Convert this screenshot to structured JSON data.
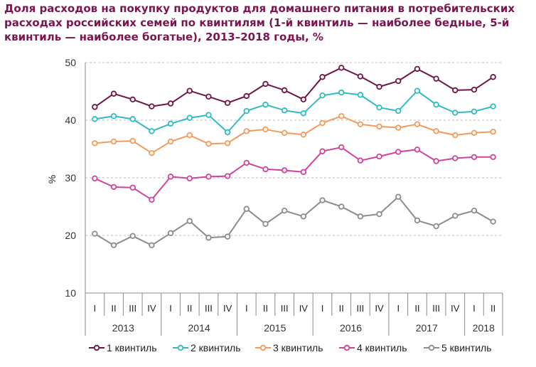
{
  "chart_data": {
    "type": "line",
    "title": "Доля расходов на покупку продуктов для домашнего питания в потребительских расходах российских семей по квинтилям (1-й квинтиль — наиболее бедные, 5-й квинтиль — наиболее богатые), 2013–2018 годы, %",
    "ylabel": "%",
    "xlabel": "",
    "ylim": [
      10,
      50
    ],
    "yticks": [
      "10",
      "20",
      "30",
      "40",
      "50"
    ],
    "grid": true,
    "legend_position": "bottom",
    "quarters": [
      "I",
      "II",
      "III",
      "IV",
      "I",
      "II",
      "III",
      "IV",
      "I",
      "II",
      "III",
      "IV",
      "I",
      "II",
      "III",
      "IV",
      "I",
      "II",
      "III",
      "IV",
      "I",
      "II"
    ],
    "years": [
      {
        "label": "2013",
        "quarters": 4
      },
      {
        "label": "2014",
        "quarters": 4
      },
      {
        "label": "2015",
        "quarters": 4
      },
      {
        "label": "2016",
        "quarters": 4
      },
      {
        "label": "2017",
        "quarters": 4
      },
      {
        "label": "2018",
        "quarters": 2
      }
    ],
    "series": [
      {
        "name": "1 квинтиль",
        "color": "#6e1548",
        "values": [
          42.3,
          44.6,
          43.6,
          42.4,
          42.9,
          45.1,
          44.1,
          43.0,
          44.2,
          46.3,
          45.2,
          43.6,
          47.5,
          49.1,
          47.6,
          45.8,
          46.8,
          48.9,
          47.2,
          45.2,
          45.3,
          47.5
        ]
      },
      {
        "name": "2 квинтиль",
        "color": "#2fbcc1",
        "values": [
          40.2,
          40.7,
          40.2,
          38.1,
          39.4,
          40.4,
          40.9,
          37.9,
          41.6,
          42.7,
          41.7,
          41.2,
          44.3,
          44.8,
          44.4,
          42.2,
          41.6,
          45.1,
          42.7,
          41.3,
          41.5,
          42.4
        ]
      },
      {
        "name": "3 квинтиль",
        "color": "#f49a5a",
        "values": [
          36.0,
          36.3,
          36.4,
          34.3,
          36.3,
          37.4,
          35.9,
          36.0,
          38.1,
          38.4,
          37.8,
          37.5,
          39.5,
          40.7,
          39.3,
          38.9,
          38.7,
          39.3,
          38.1,
          37.4,
          37.8,
          38.0
        ]
      },
      {
        "name": "4 квинтиль",
        "color": "#d1439a",
        "values": [
          29.9,
          28.4,
          28.3,
          26.2,
          30.2,
          29.9,
          30.2,
          30.3,
          32.6,
          31.5,
          31.3,
          31.0,
          34.6,
          35.3,
          33.0,
          33.7,
          34.5,
          34.9,
          32.9,
          33.4,
          33.6,
          33.6
        ]
      },
      {
        "name": "5 квинтиль",
        "color": "#8c8c8c",
        "values": [
          20.3,
          18.3,
          19.9,
          18.3,
          20.4,
          22.5,
          19.6,
          19.8,
          24.6,
          22.0,
          24.3,
          23.3,
          26.1,
          25.0,
          23.3,
          23.7,
          26.7,
          22.6,
          21.6,
          23.4,
          24.3,
          22.4
        ]
      }
    ]
  }
}
